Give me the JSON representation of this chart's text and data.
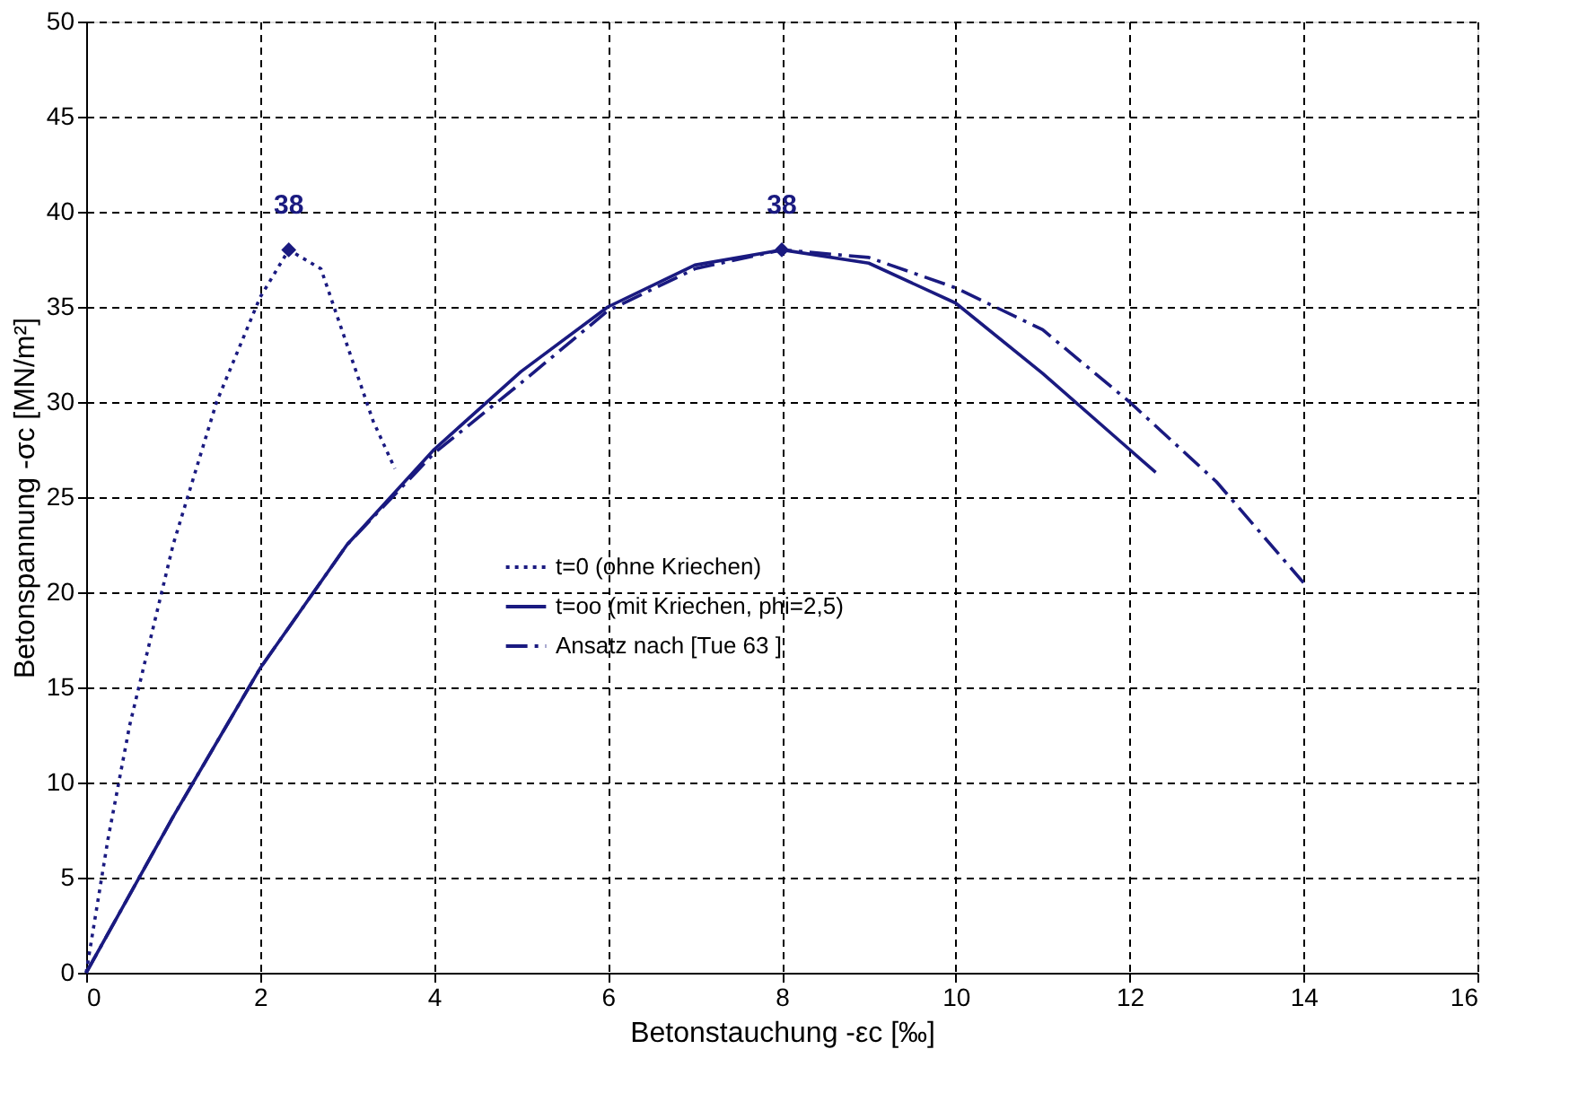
{
  "chart_data": {
    "type": "line",
    "xlabel": "Betonstauchung -εc [‰]",
    "ylabel": "Betonspannung -σc [MN/m²]",
    "xlim": [
      0,
      16
    ],
    "xticks": [
      0,
      2,
      4,
      6,
      8,
      10,
      12,
      14,
      16
    ],
    "ylim": [
      0,
      50
    ],
    "yticks": [
      0,
      5,
      10,
      15,
      20,
      25,
      30,
      35,
      40,
      45,
      50
    ],
    "grid": true,
    "legend": "center",
    "series": [
      {
        "name": "t=0 (ohne Kriechen)",
        "color": "#1a1a80",
        "line_style": "dotted",
        "x": [
          0,
          0.25,
          0.5,
          1,
          1.5,
          2,
          2.33,
          2.7,
          3.0,
          3.3,
          3.55
        ],
        "values": [
          0,
          7,
          13,
          22.5,
          30,
          35.5,
          38,
          37,
          33,
          29,
          26.5
        ]
      },
      {
        "name": "t=oo (mit Kriechen, phi=2,5)",
        "color": "#1a1a80",
        "line_style": "solid",
        "x": [
          0,
          1,
          2,
          3,
          4,
          5,
          6,
          7,
          8,
          9,
          10,
          11,
          12,
          12.3
        ],
        "values": [
          0,
          8.2,
          16,
          22.5,
          27.5,
          31.6,
          35,
          37.2,
          38,
          37.3,
          35.2,
          31.5,
          27.5,
          26.3
        ]
      },
      {
        "name": "Ansatz nach [Tue 63 ]",
        "color": "#1a1a80",
        "line_style": "dashed",
        "x": [
          0,
          1,
          2,
          3,
          4,
          5,
          6,
          7,
          8,
          9,
          10,
          11,
          12,
          13,
          14
        ],
        "values": [
          0,
          8.2,
          16,
          22.5,
          27.3,
          31,
          34.8,
          37,
          38,
          37.6,
          36,
          33.8,
          30,
          25.8,
          20.5
        ]
      },
      {
        "type": "scatter",
        "marker": "diamond",
        "color": "#1a1a80",
        "x": [
          2.33,
          8
        ],
        "values": [
          38,
          38
        ]
      }
    ],
    "annotations": [
      {
        "text": "38",
        "x": 2.33,
        "y": 38
      },
      {
        "text": "38",
        "x": 8,
        "y": 38
      }
    ]
  }
}
